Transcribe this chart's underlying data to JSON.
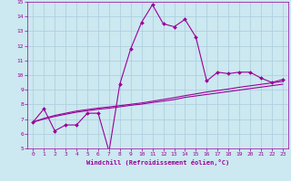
{
  "xlabel": "Windchill (Refroidissement éolien,°C)",
  "x_values": [
    0,
    1,
    2,
    3,
    4,
    5,
    6,
    7,
    8,
    9,
    10,
    11,
    12,
    13,
    14,
    15,
    16,
    17,
    18,
    19,
    20,
    21,
    22,
    23
  ],
  "line1_y": [
    6.8,
    7.7,
    6.2,
    6.6,
    6.6,
    7.4,
    7.4,
    4.8,
    9.4,
    11.8,
    13.6,
    14.8,
    13.5,
    13.3,
    13.8,
    12.6,
    9.6,
    10.2,
    10.1,
    10.2,
    10.2,
    9.8,
    9.5,
    9.7
  ],
  "line2_y": [
    6.8,
    7.05,
    7.25,
    7.4,
    7.55,
    7.65,
    7.75,
    7.83,
    7.92,
    8.01,
    8.1,
    8.22,
    8.34,
    8.46,
    8.6,
    8.72,
    8.85,
    8.95,
    9.05,
    9.17,
    9.27,
    9.37,
    9.47,
    9.57
  ],
  "line3_y": [
    6.8,
    7.0,
    7.18,
    7.33,
    7.47,
    7.57,
    7.67,
    7.74,
    7.84,
    7.94,
    8.02,
    8.13,
    8.23,
    8.33,
    8.48,
    8.58,
    8.68,
    8.78,
    8.88,
    8.98,
    9.08,
    9.18,
    9.28,
    9.38
  ],
  "color": "#990099",
  "bg_color": "#cce8f0",
  "grid_color": "#aaccdd",
  "ylim": [
    5,
    15
  ],
  "xlim": [
    -0.5,
    23.5
  ],
  "yticks": [
    5,
    6,
    7,
    8,
    9,
    10,
    11,
    12,
    13,
    14,
    15
  ],
  "xticks": [
    0,
    1,
    2,
    3,
    4,
    5,
    6,
    7,
    8,
    9,
    10,
    11,
    12,
    13,
    14,
    15,
    16,
    17,
    18,
    19,
    20,
    21,
    22,
    23
  ]
}
